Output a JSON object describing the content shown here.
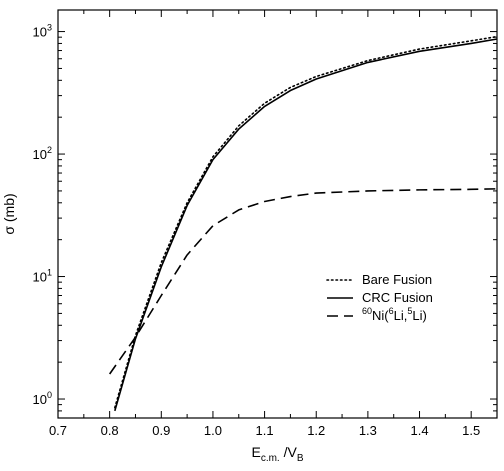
{
  "chart_data": {
    "type": "line",
    "title": "",
    "xlabel": {
      "main": "E",
      "sub1": "c.m.",
      "mid": " /V",
      "sub2": "B"
    },
    "ylabel": "σ (mb)",
    "xlim": [
      0.7,
      1.55
    ],
    "ylim": [
      0.7,
      1500
    ],
    "yscale": "log",
    "grid": false,
    "legend_position": "right-middle",
    "x_ticks": [
      "0.7",
      "0.8",
      "0.9",
      "1.0",
      "1.1",
      "1.2",
      "1.3",
      "1.4",
      "1.5"
    ],
    "y_ticks": [
      {
        "base": "10",
        "exp": "0",
        "value": 1
      },
      {
        "base": "10",
        "exp": "1",
        "value": 10
      },
      {
        "base": "10",
        "exp": "2",
        "value": 100
      },
      {
        "base": "10",
        "exp": "3",
        "value": 1000
      }
    ],
    "series": [
      {
        "name": "Bare Fusion",
        "style": "dotted",
        "x": [
          0.81,
          0.85,
          0.9,
          0.95,
          1.0,
          1.05,
          1.1,
          1.15,
          1.2,
          1.3,
          1.4,
          1.5,
          1.55
        ],
        "y": [
          0.85,
          3.3,
          13,
          40,
          95,
          170,
          260,
          350,
          430,
          580,
          720,
          840,
          910
        ]
      },
      {
        "name": "CRC Fusion",
        "style": "solid",
        "x": [
          0.81,
          0.85,
          0.9,
          0.95,
          1.0,
          1.05,
          1.1,
          1.15,
          1.2,
          1.3,
          1.4,
          1.5,
          1.55
        ],
        "y": [
          0.8,
          3.1,
          12,
          38,
          90,
          160,
          245,
          330,
          410,
          560,
          690,
          800,
          870
        ]
      },
      {
        "name_parts": [
          "60",
          "Ni(",
          "6",
          "Li,",
          "5",
          "Li)"
        ],
        "style": "dashed",
        "x": [
          0.8,
          0.85,
          0.9,
          0.95,
          1.0,
          1.05,
          1.1,
          1.15,
          1.2,
          1.3,
          1.4,
          1.5,
          1.55
        ],
        "y": [
          1.6,
          3.2,
          7,
          15,
          26,
          35,
          41,
          45,
          48,
          50,
          51,
          51.5,
          52
        ]
      }
    ]
  }
}
